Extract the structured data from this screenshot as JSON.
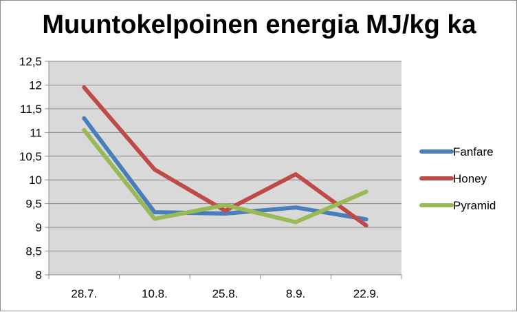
{
  "chart_data": {
    "type": "line",
    "title": "Muuntokelpoinen energia MJ/kg ka",
    "xlabel": "",
    "ylabel": "",
    "categories": [
      "28.7.",
      "10.8.",
      "25.8.",
      "8.9.",
      "22.9."
    ],
    "ylim": [
      8,
      12.5
    ],
    "ytick_step": 0.5,
    "ytick_labels": [
      "8",
      "8,5",
      "9",
      "9,5",
      "10",
      "10,5",
      "11",
      "11,5",
      "12",
      "12,5"
    ],
    "grid": true,
    "legend_position": "right",
    "plot_background": "#d9d9d9",
    "series": [
      {
        "name": "Fanfare",
        "color": "#4a7ebb",
        "values": [
          11.3,
          9.32,
          9.29,
          9.42,
          9.17
        ]
      },
      {
        "name": "Honey",
        "color": "#be4b48",
        "values": [
          11.95,
          10.22,
          9.35,
          10.12,
          9.04
        ]
      },
      {
        "name": "Pyramid",
        "color": "#98b954",
        "values": [
          11.05,
          9.18,
          9.47,
          9.11,
          9.75
        ]
      }
    ]
  }
}
